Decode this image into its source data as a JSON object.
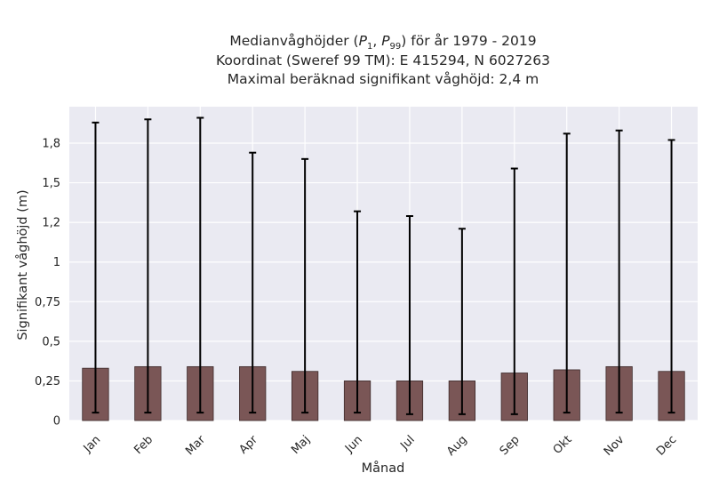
{
  "chart_data": {
    "type": "bar",
    "title": {
      "line1_prefix": "Medianvåghöjder (",
      "p_low": "P",
      "p_low_sub": "1",
      "comma": ", ",
      "p_high": "P",
      "p_high_sub": "99",
      "line1_suffix": ") för år 1979 - 2019",
      "line2": "Koordinat (Sweref 99 TM): E 415294, N 6027263",
      "line3": "Maximal beräknad signifikant våghöjd: 2,4 m"
    },
    "xlabel": "Månad",
    "ylabel": "Signifikant våghöjd (m)",
    "categories": [
      "Jan",
      "Feb",
      "Mar",
      "Apr",
      "Maj",
      "Jun",
      "Jul",
      "Aug",
      "Sep",
      "Okt",
      "Nov",
      "Dec"
    ],
    "series": [
      {
        "values": [
          0.33,
          0.34,
          0.34,
          0.34,
          0.31,
          0.25,
          0.25,
          0.25,
          0.3,
          0.32,
          0.34,
          0.31
        ],
        "p1": [
          0.05,
          0.05,
          0.05,
          0.05,
          0.05,
          0.05,
          0.04,
          0.04,
          0.04,
          0.05,
          0.05,
          0.05
        ],
        "p99": [
          1.88,
          1.9,
          1.91,
          1.69,
          1.65,
          1.32,
          1.29,
          1.21,
          1.59,
          1.81,
          1.83,
          1.77
        ]
      }
    ],
    "yticks": [
      0,
      0.25,
      0.5,
      0.75,
      1,
      1.25,
      1.5,
      1.75
    ],
    "ytick_labels": [
      "0",
      "0,25",
      "0,5",
      "0,75",
      "1",
      "1,2",
      "1,5",
      "1,8"
    ],
    "ylim": [
      0,
      1.98
    ],
    "grid": true,
    "colors": {
      "bar": "#7a5656",
      "bar_edge": "#3c2a2a",
      "errorbar": "#000000",
      "plot_bg": "#eaeaf2",
      "grid": "#ffffff"
    }
  }
}
